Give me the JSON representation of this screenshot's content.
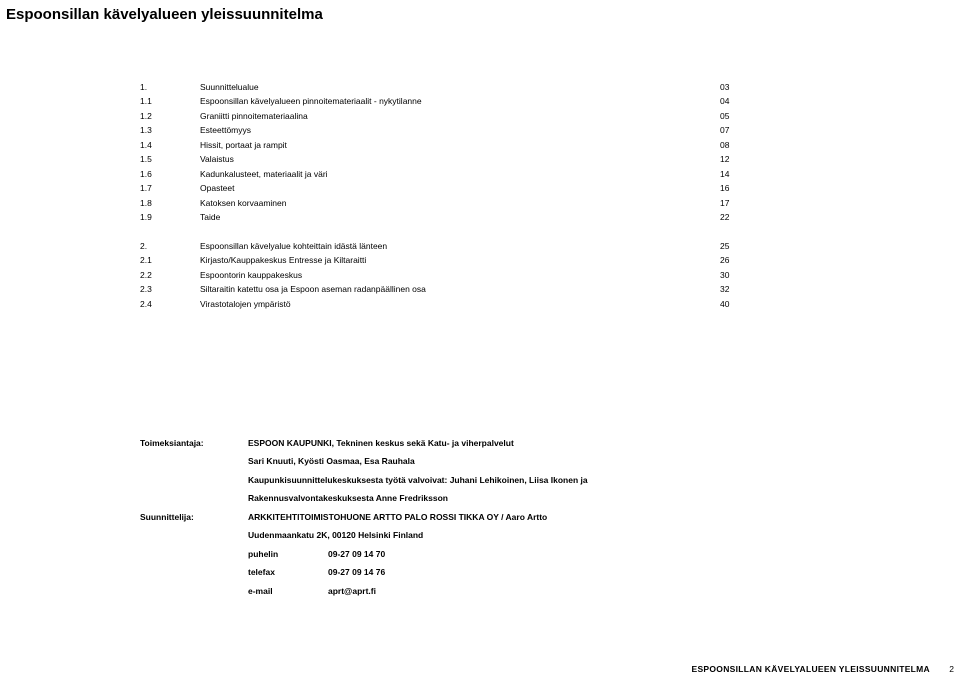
{
  "title": "Espoonsillan kävelyalueen yleissuunnitelma",
  "toc_section1": [
    {
      "num": "1.",
      "label": "Suunnittelualue",
      "page": "03"
    },
    {
      "num": "1.1",
      "label": "Espoonsillan kävelyalueen pinnoitemateriaalit - nykytilanne",
      "page": "04"
    },
    {
      "num": "1.2",
      "label": "Graniitti pinnoitemateriaalina",
      "page": "05"
    },
    {
      "num": "1.3",
      "label": "Esteettömyys",
      "page": "07"
    },
    {
      "num": "1.4",
      "label": "Hissit, portaat ja rampit",
      "page": "08"
    },
    {
      "num": "1.5",
      "label": "Valaistus",
      "page": "12"
    },
    {
      "num": "1.6",
      "label": "Kadunkalusteet, materiaalit ja väri",
      "page": "14"
    },
    {
      "num": "1.7",
      "label": "Opasteet",
      "page": "16"
    },
    {
      "num": "1.8",
      "label": "Katoksen korvaaminen",
      "page": "17"
    },
    {
      "num": "1.9",
      "label": "Taide",
      "page": "22"
    }
  ],
  "toc_section2": [
    {
      "num": "2.",
      "label": "Espoonsillan kävelyalue kohteittain idästä länteen",
      "page": "25"
    },
    {
      "num": "2.1",
      "label": "Kirjasto/Kauppakeskus Entresse ja Kiltaraitti",
      "page": "26"
    },
    {
      "num": "2.2",
      "label": "Espoontorin kauppakeskus",
      "page": "30"
    },
    {
      "num": "2.3",
      "label": "Siltaraitin katettu osa ja Espoon aseman radanpäällinen osa",
      "page": "32"
    },
    {
      "num": "2.4",
      "label": "Virastotalojen ympäristö",
      "page": "40"
    }
  ],
  "credits": {
    "role1": "Toimeksiantaja:",
    "client_line1": "ESPOON KAUPUNKI, Tekninen keskus sekä Katu- ja viherpalvelut",
    "client_line2": "Sari Knuuti, Kyösti Oasmaa, Esa Rauhala",
    "client_line3": "Kaupunkisuunnittelukeskuksesta työtä valvoivat: Juhani Lehikoinen, Liisa Ikonen ja",
    "client_line4": "Rakennusvalvontakeskuksesta Anne Fredriksson",
    "role2": "Suunnittelija:",
    "designer_line1": "ARKKITEHTITOIMISTOHUONE ARTTO PALO ROSSI TIKKA OY / Aaro Artto",
    "designer_line2": "Uudenmaankatu 2K, 00120 Helsinki Finland",
    "phone_label": "puhelin",
    "phone": "09-27 09 14 70",
    "fax_label": "telefax",
    "fax": "09-27 09 14 76",
    "email_label": "e-mail",
    "email": "aprt@aprt.fi"
  },
  "footer": "ESPOONSILLAN KÄVELYALUEEN YLEISSUUNNITELMA",
  "pagenum": "2"
}
